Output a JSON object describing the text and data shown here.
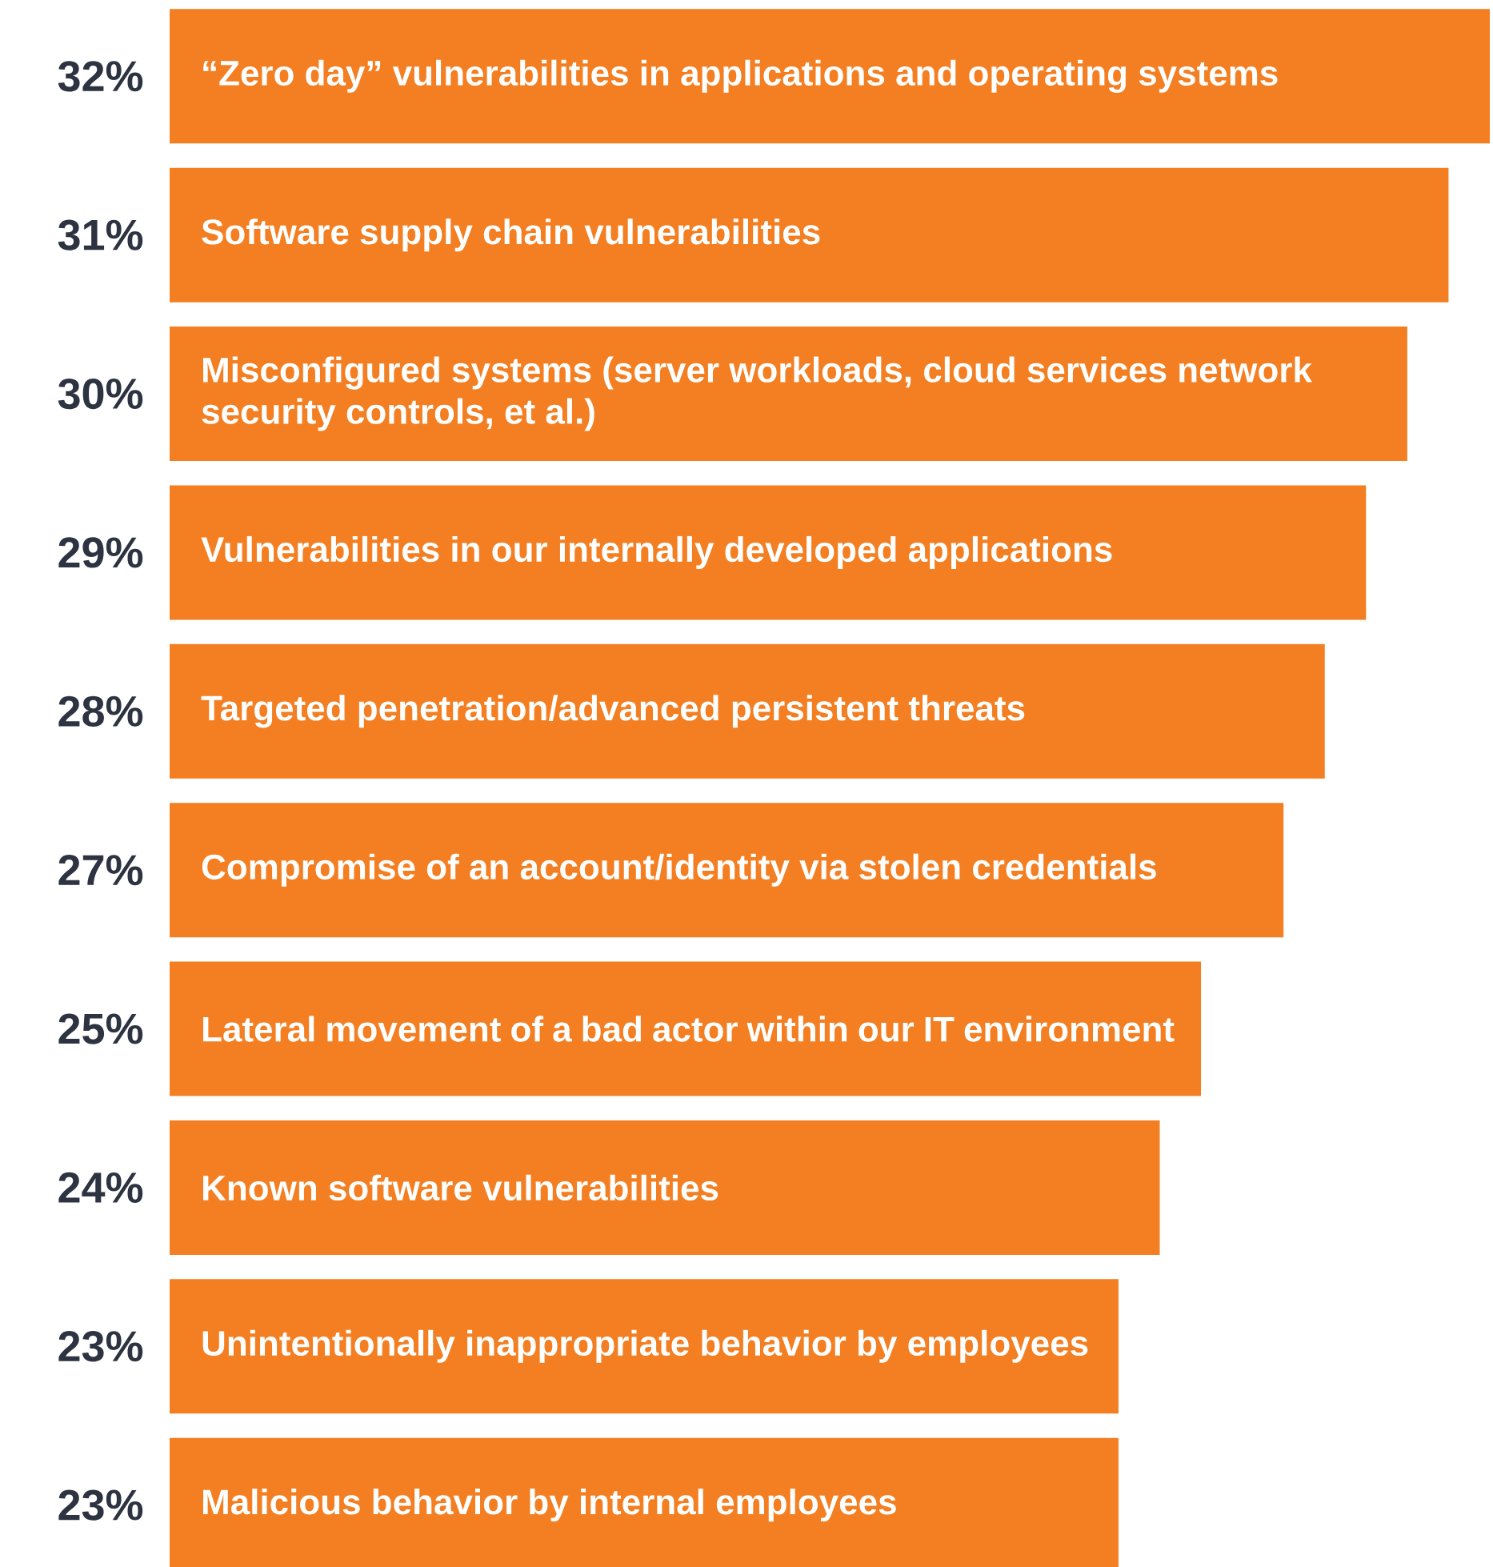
{
  "chart_data": {
    "type": "bar",
    "orientation": "horizontal",
    "categories": [
      "“Zero day” vulnerabilities in applications and operating systems",
      "Software supply chain vulnerabilities",
      "Misconfigured systems (server workloads, cloud services network security controls, et al.)",
      "Vulnerabilities in our internally developed applications",
      "Targeted penetration/advanced persistent threats",
      "Compromise of an account/identity via stolen credentials",
      "Lateral movement of a bad actor within our IT environment",
      "Known software vulnerabilities",
      "Unintentionally inappropriate behavior by employees",
      "Malicious behavior by internal employees"
    ],
    "values": [
      32,
      31,
      30,
      29,
      28,
      27,
      25,
      24,
      23,
      23
    ],
    "value_labels": [
      "32%",
      "31%",
      "30%",
      "29%",
      "28%",
      "27%",
      "25%",
      "24%",
      "23%",
      "23%"
    ],
    "color": "#f37f22",
    "xlim": [
      0,
      32
    ],
    "tick_labels": "y"
  }
}
